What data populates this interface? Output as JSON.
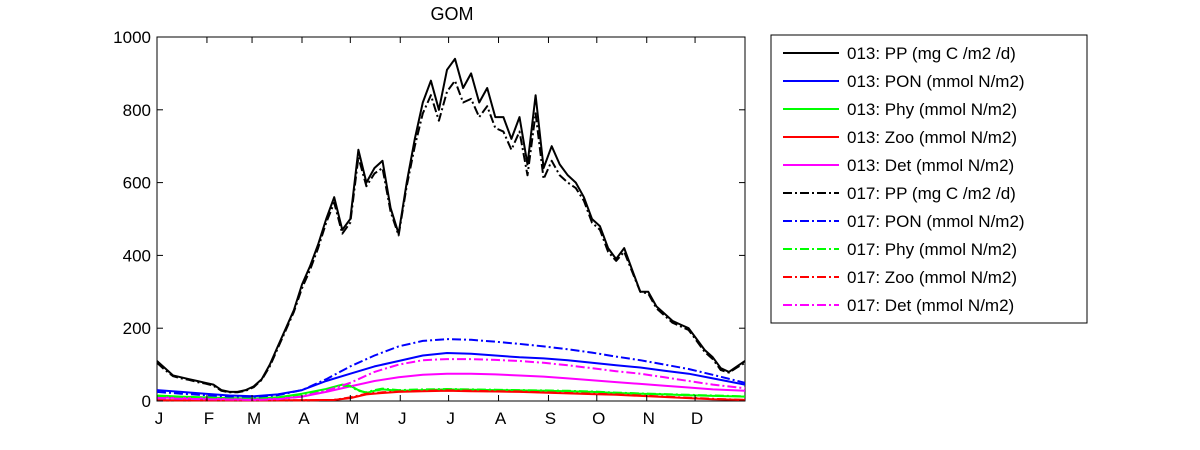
{
  "chart_data": {
    "type": "line",
    "title": "GOM",
    "xlabel": "",
    "ylabel": "",
    "x_range": [
      0,
      365
    ],
    "ylim": [
      0,
      1000
    ],
    "yticks": [
      0,
      200,
      400,
      600,
      800,
      1000
    ],
    "month_ticks": [
      {
        "label": "J",
        "day": 0
      },
      {
        "label": "F",
        "day": 31
      },
      {
        "label": "M",
        "day": 59
      },
      {
        "label": "A",
        "day": 90
      },
      {
        "label": "M",
        "day": 120
      },
      {
        "label": "J",
        "day": 151
      },
      {
        "label": "J",
        "day": 181
      },
      {
        "label": "A",
        "day": 212
      },
      {
        "label": "S",
        "day": 243
      },
      {
        "label": "O",
        "day": 273
      },
      {
        "label": "N",
        "day": 304
      },
      {
        "label": "D",
        "day": 334
      }
    ],
    "grid": false,
    "legend_position": "outside-right",
    "series": [
      {
        "name": "013: PP (mg C /m2 /d)",
        "color": "#000000",
        "dash": "solid",
        "x": [
          0,
          5,
          10,
          15,
          20,
          25,
          30,
          35,
          40,
          45,
          50,
          55,
          60,
          65,
          70,
          75,
          80,
          85,
          90,
          95,
          100,
          105,
          110,
          115,
          120,
          125,
          130,
          135,
          140,
          145,
          150,
          155,
          160,
          165,
          170,
          175,
          180,
          185,
          190,
          195,
          200,
          205,
          210,
          215,
          220,
          225,
          230,
          235,
          240,
          245,
          250,
          255,
          260,
          265,
          270,
          275,
          280,
          285,
          290,
          295,
          300,
          305,
          310,
          315,
          320,
          325,
          330,
          335,
          340,
          345,
          350,
          355,
          360,
          365
        ],
        "y": [
          110,
          90,
          70,
          65,
          60,
          55,
          50,
          45,
          30,
          25,
          25,
          30,
          40,
          60,
          100,
          150,
          200,
          250,
          320,
          370,
          430,
          500,
          560,
          470,
          500,
          690,
          600,
          640,
          660,
          530,
          460,
          600,
          720,
          820,
          880,
          800,
          910,
          940,
          860,
          900,
          820,
          860,
          780,
          780,
          720,
          780,
          650,
          840,
          640,
          700,
          650,
          620,
          600,
          560,
          500,
          480,
          420,
          390,
          420,
          360,
          300,
          300,
          260,
          240,
          220,
          210,
          200,
          170,
          140,
          120,
          90,
          80,
          95,
          110
        ]
      },
      {
        "name": "013: PON (mmol N/m2)",
        "color": "#0000ff",
        "dash": "solid",
        "x": [
          0,
          15,
          30,
          45,
          60,
          75,
          90,
          105,
          120,
          135,
          150,
          165,
          180,
          195,
          210,
          225,
          240,
          255,
          270,
          285,
          300,
          315,
          330,
          345,
          365
        ],
        "y": [
          30,
          25,
          20,
          15,
          13,
          18,
          30,
          55,
          75,
          95,
          110,
          125,
          132,
          130,
          125,
          120,
          117,
          112,
          105,
          98,
          92,
          83,
          75,
          62,
          45
        ]
      },
      {
        "name": "013: Phy (mmol N/m2)",
        "color": "#00ff00",
        "dash": "solid",
        "x": [
          0,
          15,
          30,
          45,
          60,
          75,
          90,
          105,
          115,
          120,
          125,
          130,
          135,
          140,
          150,
          165,
          180,
          195,
          210,
          225,
          240,
          255,
          270,
          285,
          300,
          315,
          330,
          345,
          365
        ],
        "y": [
          15,
          12,
          10,
          8,
          7,
          10,
          20,
          33,
          45,
          42,
          30,
          22,
          28,
          32,
          28,
          30,
          32,
          31,
          30,
          29,
          28,
          27,
          25,
          22,
          20,
          18,
          16,
          14,
          12
        ]
      },
      {
        "name": "013: Zoo (mmol N/m2)",
        "color": "#ff0000",
        "dash": "solid",
        "x": [
          0,
          30,
          60,
          90,
          110,
          120,
          130,
          140,
          150,
          165,
          180,
          195,
          210,
          225,
          240,
          255,
          270,
          285,
          300,
          315,
          330,
          345,
          365
        ],
        "y": [
          2,
          2,
          2,
          2,
          3,
          8,
          18,
          22,
          25,
          27,
          28,
          27,
          26,
          25,
          23,
          21,
          19,
          17,
          14,
          11,
          8,
          5,
          3
        ]
      },
      {
        "name": "013: Det (mmol N/m2)",
        "color": "#ff00ff",
        "dash": "solid",
        "x": [
          0,
          15,
          30,
          45,
          60,
          75,
          90,
          105,
          120,
          135,
          150,
          165,
          180,
          195,
          210,
          225,
          240,
          255,
          270,
          285,
          300,
          315,
          330,
          345,
          365
        ],
        "y": [
          10,
          8,
          7,
          5,
          4,
          6,
          12,
          25,
          40,
          55,
          65,
          72,
          75,
          75,
          73,
          70,
          67,
          62,
          57,
          52,
          47,
          42,
          37,
          32,
          28
        ]
      },
      {
        "name": "017: PP (mg C /m2 /d)",
        "color": "#000000",
        "dash": "dashdot",
        "x": [
          0,
          5,
          10,
          15,
          20,
          25,
          30,
          35,
          40,
          45,
          50,
          55,
          60,
          65,
          70,
          75,
          80,
          85,
          90,
          95,
          100,
          105,
          110,
          115,
          120,
          125,
          130,
          135,
          140,
          145,
          150,
          155,
          160,
          165,
          170,
          175,
          180,
          185,
          190,
          195,
          200,
          205,
          210,
          215,
          220,
          225,
          230,
          235,
          240,
          245,
          250,
          255,
          260,
          265,
          270,
          275,
          280,
          285,
          290,
          295,
          300,
          305,
          310,
          315,
          320,
          325,
          330,
          335,
          340,
          345,
          350,
          355,
          360,
          365
        ],
        "y": [
          105,
          85,
          68,
          62,
          58,
          52,
          48,
          42,
          28,
          24,
          24,
          28,
          38,
          58,
          95,
          145,
          195,
          245,
          310,
          360,
          420,
          490,
          545,
          460,
          490,
          670,
          590,
          625,
          640,
          520,
          455,
          590,
          700,
          790,
          840,
          770,
          850,
          880,
          820,
          830,
          780,
          810,
          750,
          740,
          690,
          740,
          620,
          790,
          610,
          660,
          620,
          600,
          585,
          550,
          490,
          470,
          410,
          385,
          410,
          355,
          300,
          295,
          255,
          235,
          215,
          205,
          195,
          165,
          135,
          115,
          85,
          78,
          92,
          105
        ]
      },
      {
        "name": "017: PON (mmol N/m2)",
        "color": "#0000ff",
        "dash": "dashdot",
        "x": [
          0,
          15,
          30,
          45,
          60,
          75,
          90,
          105,
          120,
          135,
          150,
          165,
          180,
          195,
          210,
          225,
          240,
          255,
          270,
          285,
          300,
          315,
          330,
          345,
          365
        ],
        "y": [
          25,
          20,
          16,
          12,
          11,
          16,
          30,
          60,
          95,
          125,
          150,
          165,
          170,
          168,
          163,
          157,
          150,
          142,
          133,
          122,
          112,
          100,
          88,
          72,
          50
        ]
      },
      {
        "name": "017: Phy (mmol N/m2)",
        "color": "#00ff00",
        "dash": "dashdot",
        "x": [
          0,
          15,
          30,
          45,
          60,
          75,
          90,
          105,
          115,
          120,
          125,
          130,
          135,
          140,
          150,
          165,
          180,
          195,
          210,
          225,
          240,
          255,
          270,
          285,
          300,
          315,
          330,
          345,
          365
        ],
        "y": [
          14,
          11,
          9,
          7,
          6,
          9,
          18,
          30,
          42,
          40,
          28,
          24,
          30,
          34,
          30,
          32,
          33,
          32,
          31,
          30,
          29,
          28,
          26,
          23,
          21,
          19,
          17,
          15,
          13
        ]
      },
      {
        "name": "017: Zoo (mmol N/m2)",
        "color": "#ff0000",
        "dash": "dashdot",
        "x": [
          0,
          30,
          60,
          90,
          110,
          120,
          130,
          140,
          150,
          165,
          180,
          195,
          210,
          225,
          240,
          255,
          270,
          285,
          300,
          315,
          330,
          345,
          365
        ],
        "y": [
          2,
          2,
          2,
          2,
          3,
          10,
          20,
          24,
          26,
          28,
          29,
          28,
          27,
          26,
          24,
          22,
          20,
          18,
          15,
          12,
          9,
          6,
          3
        ]
      },
      {
        "name": "017: Det (mmol N/m2)",
        "color": "#ff00ff",
        "dash": "dashdot",
        "x": [
          0,
          15,
          30,
          45,
          60,
          75,
          90,
          105,
          120,
          135,
          150,
          165,
          180,
          195,
          210,
          225,
          240,
          255,
          270,
          285,
          300,
          315,
          330,
          345,
          365
        ],
        "y": [
          8,
          6,
          5,
          4,
          3,
          5,
          12,
          28,
          50,
          80,
          100,
          112,
          115,
          115,
          113,
          110,
          105,
          98,
          90,
          82,
          75,
          65,
          55,
          45,
          35
        ]
      }
    ]
  }
}
